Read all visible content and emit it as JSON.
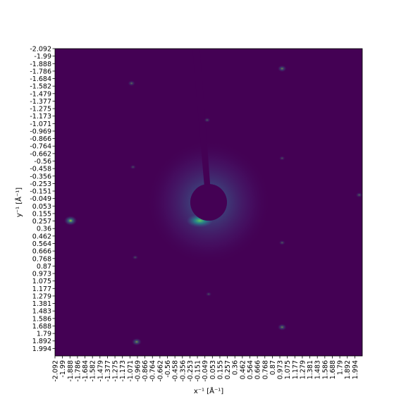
{
  "chart_data": {
    "type": "heatmap",
    "title": "",
    "xlabel": "x⁻¹ [Å⁻¹]",
    "ylabel": "y⁻¹ [Å⁻¹]",
    "colormap": "viridis",
    "background_color": "#440154",
    "xlim": [
      -2.092,
      2.092
    ],
    "ylim": [
      2.092,
      -2.092
    ],
    "y_inverted": true,
    "grid": false,
    "x_tick_labels": [
      "-2.092",
      "-1.99",
      "-1.888",
      "-1.786",
      "-1.684",
      "-1.582",
      "-1.479",
      "-1.377",
      "-1.275",
      "-1.173",
      "-1.071",
      "-0.969",
      "-0.866",
      "-0.764",
      "-0.662",
      "-0.56",
      "-0.458",
      "-0.356",
      "-0.253",
      "-0.151",
      "-0.049",
      "0.053",
      "0.155",
      "0.257",
      "0.36",
      "0.462",
      "0.564",
      "0.666",
      "0.768",
      "0.87",
      "0.973",
      "1.075",
      "1.177",
      "1.279",
      "1.381",
      "1.483",
      "1.586",
      "1.688",
      "1.79",
      "1.892",
      "1.994"
    ],
    "y_tick_labels": [
      "-2.092",
      "-1.99",
      "-1.888",
      "-1.786",
      "-1.684",
      "-1.582",
      "-1.479",
      "-1.377",
      "-1.275",
      "-1.173",
      "-1.071",
      "-0.969",
      "-0.866",
      "-0.764",
      "-0.662",
      "-0.56",
      "-0.458",
      "-0.356",
      "-0.253",
      "-0.151",
      "-0.049",
      "0.053",
      "0.155",
      "0.257",
      "0.36",
      "0.462",
      "0.564",
      "0.666",
      "0.768",
      "0.87",
      "0.973",
      "1.075",
      "1.177",
      "1.279",
      "1.381",
      "1.483",
      "1.586",
      "1.688",
      "1.79",
      "1.892",
      "1.994"
    ],
    "beamstop": {
      "center": [
        0.0,
        0.0
      ],
      "radius": 0.25,
      "color": "#440154"
    },
    "central_glow": {
      "center": [
        0.0,
        0.0
      ],
      "radius": 0.85,
      "color": "#3b5b8c"
    },
    "bright_crescent": {
      "center": [
        -0.12,
        0.25
      ],
      "color": "#5ec962"
    },
    "peaks": [
      {
        "x": -1.88,
        "y": 0.25,
        "intensity": 0.85
      },
      {
        "x": 1.0,
        "y": -1.82,
        "intensity": 0.45
      },
      {
        "x": -1.05,
        "y": -1.62,
        "intensity": 0.3
      },
      {
        "x": 1.0,
        "y": 1.7,
        "intensity": 0.45
      },
      {
        "x": -0.98,
        "y": 1.9,
        "intensity": 0.55
      },
      {
        "x": -0.02,
        "y": -1.12,
        "intensity": 0.2
      },
      {
        "x": -1.03,
        "y": -0.48,
        "intensity": 0.15
      },
      {
        "x": 1.0,
        "y": -0.6,
        "intensity": 0.15
      },
      {
        "x": 1.0,
        "y": 0.55,
        "intensity": 0.2
      },
      {
        "x": -1.0,
        "y": 0.75,
        "intensity": 0.15
      },
      {
        "x": 2.05,
        "y": -0.1,
        "intensity": 0.25
      },
      {
        "x": 0.0,
        "y": 1.25,
        "intensity": 0.15
      }
    ]
  }
}
